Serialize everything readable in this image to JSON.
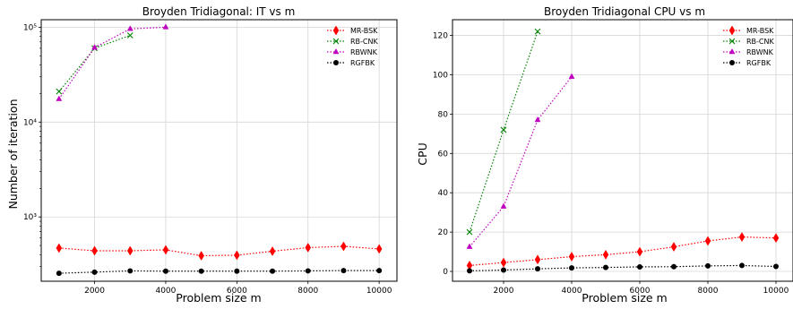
{
  "chart_data": [
    {
      "type": "line",
      "title": "Broyden Tridiagonal: IT vs m",
      "xlabel": "Problem size m",
      "ylabel": "Number of iteration",
      "yscale": "log",
      "xlim": [
        500,
        10500
      ],
      "ylim": [
        210,
        120000
      ],
      "xticks": [
        2000,
        4000,
        6000,
        8000,
        10000
      ],
      "xtick_labels": [
        "2000",
        "4000",
        "6000",
        "8000",
        "10000"
      ],
      "yticks": [
        1000,
        10000,
        100000
      ],
      "ytick_labels": [
        "10³",
        "10⁴",
        "10⁵"
      ],
      "grid": true,
      "legend_position": "top-right",
      "series": [
        {
          "name": "MR-BSK",
          "color": "#ff0000",
          "marker": "diamond",
          "x": [
            1000,
            2000,
            3000,
            4000,
            5000,
            6000,
            7000,
            8000,
            9000,
            10000
          ],
          "y": [
            470,
            440,
            440,
            450,
            390,
            395,
            435,
            475,
            490,
            460
          ]
        },
        {
          "name": "RB-CNK",
          "color": "#008000",
          "marker": "x",
          "x": [
            1000,
            2000,
            3000
          ],
          "y": [
            21000,
            60000,
            82000
          ]
        },
        {
          "name": "RBWNK",
          "color": "#bf00bf",
          "marker": "triangle",
          "x": [
            1000,
            2000,
            3000,
            4000
          ],
          "y": [
            17500,
            61000,
            96000,
            100000
          ]
        },
        {
          "name": "RGFBK",
          "color": "#000000",
          "marker": "circle",
          "x": [
            1000,
            2000,
            3000,
            4000,
            5000,
            6000,
            7000,
            8000,
            9000,
            10000
          ],
          "y": [
            255,
            262,
            270,
            268,
            268,
            268,
            268,
            270,
            272,
            272
          ]
        }
      ]
    },
    {
      "type": "line",
      "title": "Broyden Tridiagonal CPU vs m",
      "xlabel": "Problem size m",
      "ylabel": "CPU",
      "yscale": "linear",
      "xlim": [
        500,
        10500
      ],
      "ylim": [
        -5,
        128
      ],
      "xticks": [
        2000,
        4000,
        6000,
        8000,
        10000
      ],
      "xtick_labels": [
        "2000",
        "4000",
        "6000",
        "8000",
        "10000"
      ],
      "yticks": [
        0,
        20,
        40,
        60,
        80,
        100,
        120
      ],
      "ytick_labels": [
        "0",
        "20",
        "40",
        "60",
        "80",
        "100",
        "120"
      ],
      "grid": true,
      "legend_position": "top-right",
      "series": [
        {
          "name": "MR-BSK",
          "color": "#ff0000",
          "marker": "diamond",
          "x": [
            1000,
            2000,
            3000,
            4000,
            5000,
            6000,
            7000,
            8000,
            9000,
            10000
          ],
          "y": [
            3,
            4.5,
            6,
            7.5,
            8.5,
            10,
            12.5,
            15.5,
            17.5,
            17
          ]
        },
        {
          "name": "RB-CNK",
          "color": "#008000",
          "marker": "x",
          "x": [
            1000,
            2000,
            3000
          ],
          "y": [
            20,
            72,
            122
          ]
        },
        {
          "name": "RBWNK",
          "color": "#bf00bf",
          "marker": "triangle",
          "x": [
            1000,
            2000,
            3000,
            4000
          ],
          "y": [
            12.5,
            33,
            77,
            99
          ]
        },
        {
          "name": "RGFBK",
          "color": "#000000",
          "marker": "circle",
          "x": [
            1000,
            2000,
            3000,
            4000,
            5000,
            6000,
            7000,
            8000,
            9000,
            10000
          ],
          "y": [
            0.3,
            0.7,
            1.3,
            1.8,
            2,
            2.3,
            2.4,
            2.8,
            3,
            2.5
          ]
        }
      ]
    }
  ]
}
